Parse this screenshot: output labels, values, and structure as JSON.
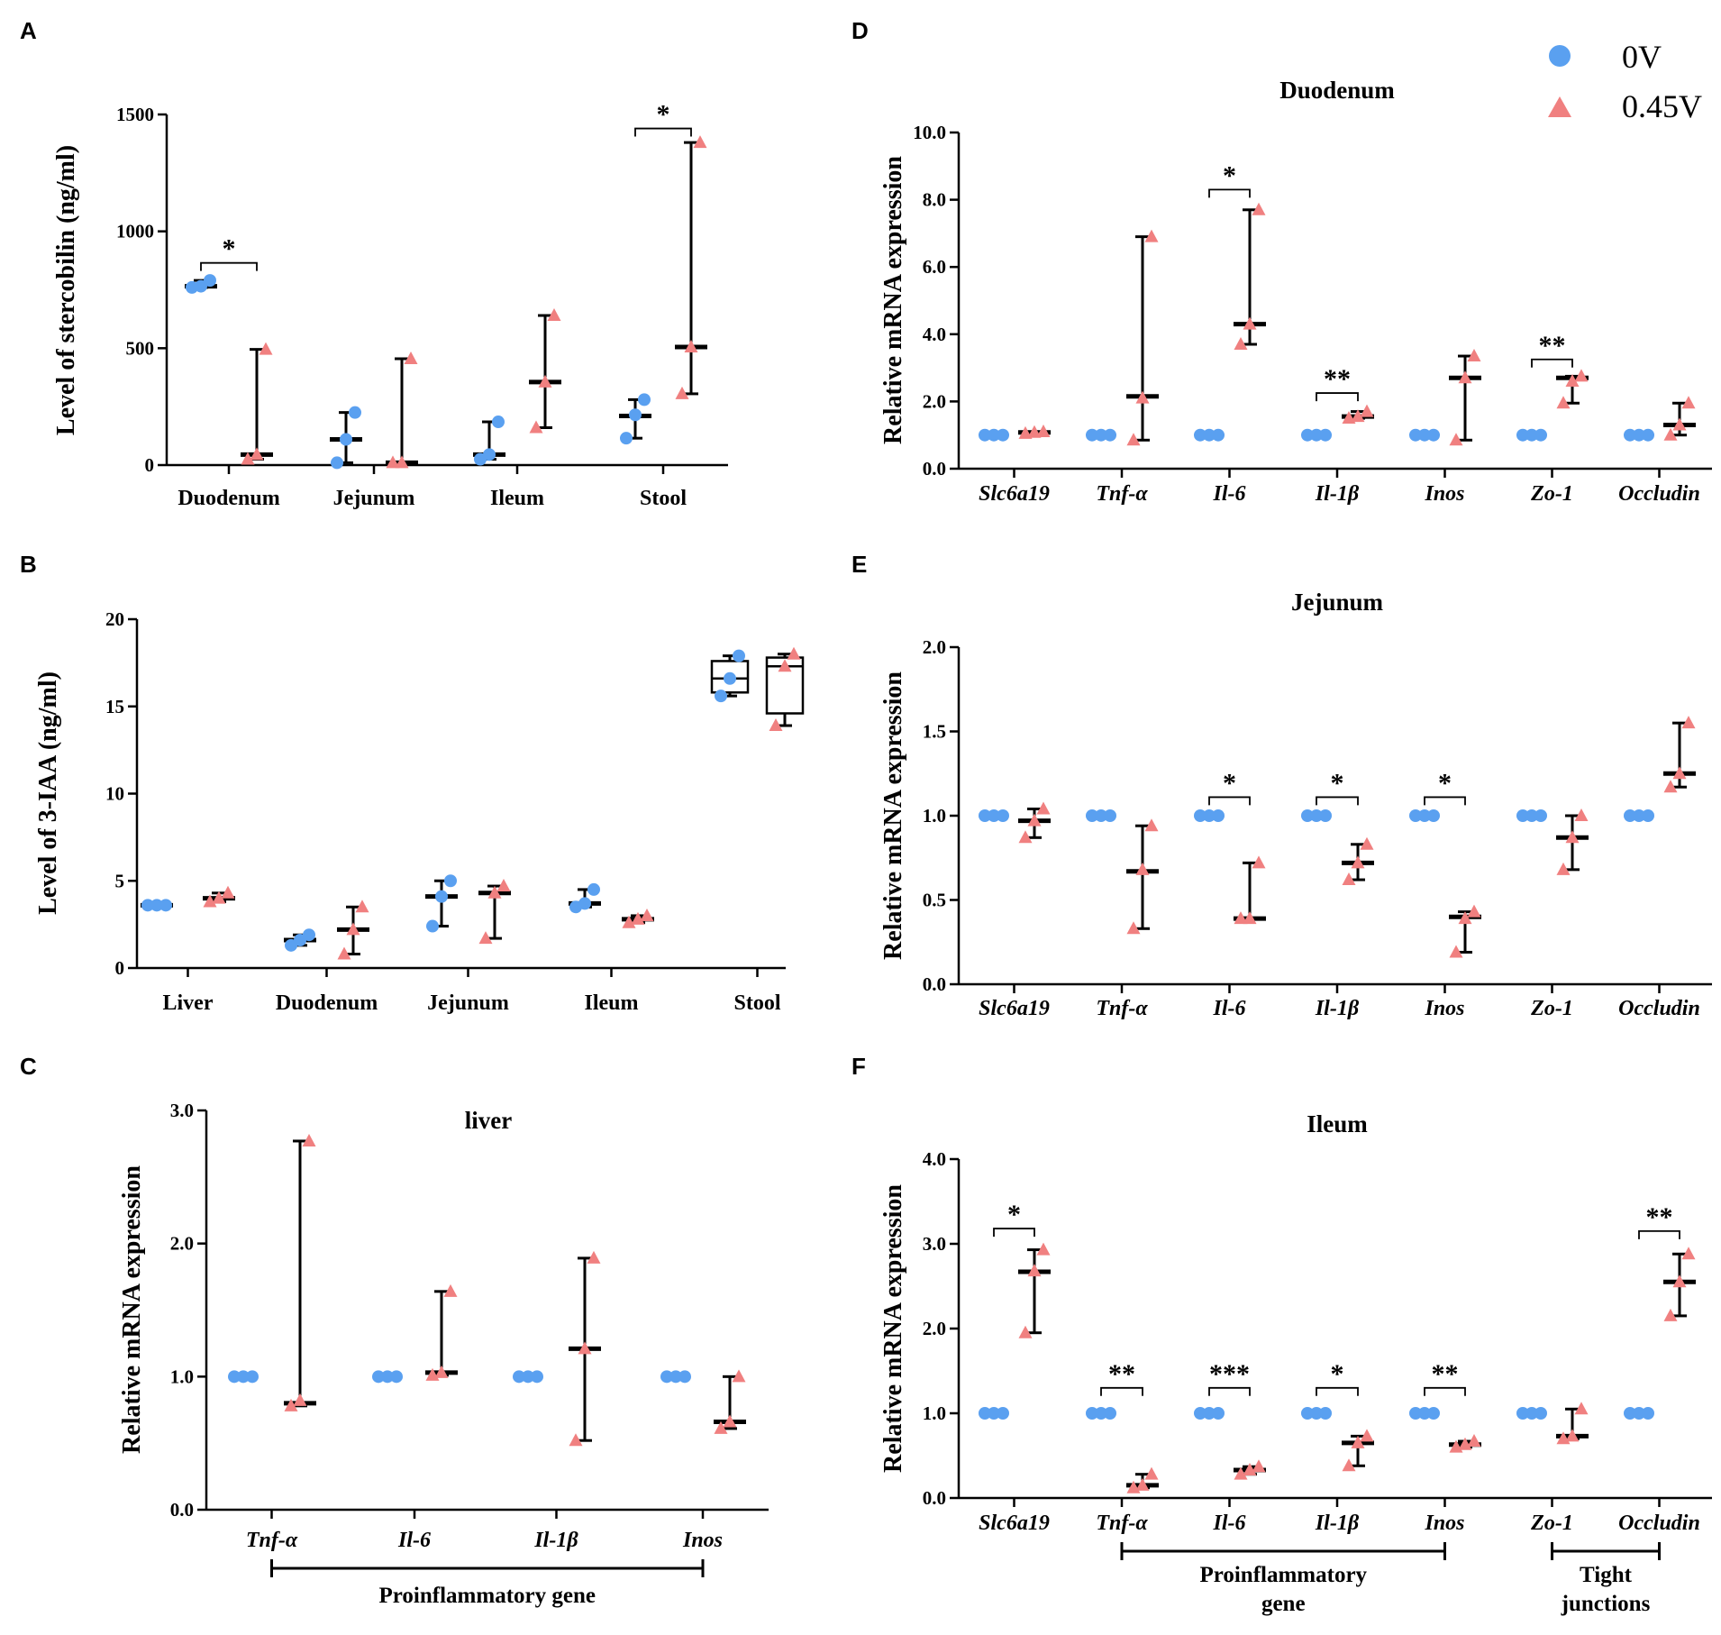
{
  "colors": {
    "control": "#5aa0f0",
    "treated": "#f08080",
    "axis": "#000000"
  },
  "legend": [
    {
      "label": "0V",
      "shape": "circle"
    },
    {
      "label": "0.45V",
      "shape": "triangle"
    }
  ],
  "chart_data": [
    {
      "panel": "A",
      "type": "scatter",
      "title": "",
      "ylabel": "Level of stercobilin (ng/ml)",
      "ylim": [
        0,
        1500
      ],
      "yticks": [
        0,
        500,
        1000,
        1500
      ],
      "ytick_decimals": 0,
      "categories": [
        "Duodenum",
        "Jejunum",
        "Ileum",
        "Stool"
      ],
      "italic_categories": false,
      "series": [
        {
          "name": "0V",
          "points": [
            [
              760,
              765,
              790
            ],
            [
              10,
              110,
              225
            ],
            [
              25,
              45,
              185
            ],
            [
              115,
              215,
              280
            ]
          ],
          "center": [
            765,
            110,
            45,
            210
          ],
          "range": [
            [
              760,
              790
            ],
            [
              10,
              225
            ],
            [
              25,
              185
            ],
            [
              115,
              280
            ]
          ]
        },
        {
          "name": "0.45V",
          "points": [
            [
              25,
              45,
              495
            ],
            [
              10,
              10,
              455
            ],
            [
              160,
              355,
              640
            ],
            [
              305,
              505,
              1380
            ]
          ],
          "center": [
            45,
            10,
            355,
            505
          ],
          "range": [
            [
              25,
              495
            ],
            [
              10,
              455
            ],
            [
              160,
              640
            ],
            [
              305,
              1380
            ]
          ]
        }
      ],
      "annotations": [
        {
          "category": 0,
          "label": "*",
          "y": 865
        },
        {
          "category": 3,
          "label": "*",
          "y": 1440
        }
      ],
      "group_labels": []
    },
    {
      "panel": "B",
      "type": "box",
      "title": "",
      "ylabel": "Level of 3-IAA (ng/ml)",
      "ylim": [
        0,
        20
      ],
      "yticks": [
        0,
        5,
        10,
        15,
        20
      ],
      "ytick_decimals": 0,
      "categories": [
        "Liver",
        "Duodenum",
        "Jejunum",
        "Ileum",
        "Stool"
      ],
      "italic_categories": false,
      "series": [
        {
          "name": "0V",
          "points": [
            [
              3.6,
              3.6,
              3.6
            ],
            [
              1.3,
              1.6,
              1.9
            ],
            [
              2.4,
              4.1,
              5.0
            ],
            [
              3.5,
              3.7,
              4.5
            ],
            [
              15.6,
              16.6,
              17.9
            ]
          ],
          "center": [
            3.6,
            1.6,
            4.1,
            3.7,
            16.6
          ],
          "range": [
            [
              3.6,
              3.6
            ],
            [
              1.3,
              1.9
            ],
            [
              2.4,
              5.0
            ],
            [
              3.5,
              4.5
            ],
            [
              15.6,
              17.9
            ]
          ],
          "box": [
            null,
            null,
            null,
            null,
            [
              15.8,
              17.6
            ]
          ]
        },
        {
          "name": "0.45V",
          "points": [
            [
              3.8,
              4.0,
              4.3
            ],
            [
              0.8,
              2.2,
              3.5
            ],
            [
              1.7,
              4.3,
              4.7
            ],
            [
              2.6,
              2.8,
              3.0
            ],
            [
              13.9,
              17.3,
              18.0
            ]
          ],
          "center": [
            4.0,
            2.2,
            4.3,
            2.8,
            17.3
          ],
          "range": [
            [
              3.8,
              4.3
            ],
            [
              0.8,
              3.5
            ],
            [
              1.7,
              4.7
            ],
            [
              2.6,
              3.0
            ],
            [
              13.9,
              18.0
            ]
          ],
          "box": [
            null,
            null,
            null,
            null,
            [
              14.6,
              17.8
            ]
          ]
        }
      ],
      "annotations": [],
      "group_labels": []
    },
    {
      "panel": "C",
      "type": "scatter",
      "title": "liver",
      "ylabel": "Relative mRNA expression",
      "ylim": [
        0,
        3
      ],
      "yticks": [
        0,
        1,
        2,
        3
      ],
      "ytick_decimals": 1,
      "categories": [
        "Tnf-α",
        "Il-6",
        "Il-1β",
        "Inos"
      ],
      "italic_categories": true,
      "series": [
        {
          "name": "0V",
          "points": [
            [
              1,
              1,
              1
            ],
            [
              1,
              1,
              1
            ],
            [
              1,
              1,
              1
            ],
            [
              1,
              1,
              1
            ]
          ],
          "center": [
            1,
            1,
            1,
            1
          ],
          "range": [
            [
              1,
              1
            ],
            [
              1,
              1
            ],
            [
              1,
              1
            ],
            [
              1,
              1
            ]
          ]
        },
        {
          "name": "0.45V",
          "points": [
            [
              0.78,
              0.82,
              2.77
            ],
            [
              1.01,
              1.03,
              1.64
            ],
            [
              0.52,
              1.21,
              1.89
            ],
            [
              0.61,
              0.66,
              1.0
            ]
          ],
          "center": [
            0.8,
            1.03,
            1.21,
            0.66
          ],
          "range": [
            [
              0.78,
              2.77
            ],
            [
              1.01,
              1.64
            ],
            [
              0.52,
              1.89
            ],
            [
              0.61,
              1.0
            ]
          ]
        }
      ],
      "annotations": [],
      "group_labels": [
        {
          "label": "Proinflammatory gene",
          "from": 0,
          "to": 3
        }
      ]
    },
    {
      "panel": "D",
      "type": "scatter",
      "title": "Duodenum",
      "ylabel": "Relative mRNA expression",
      "ylim": [
        0,
        10
      ],
      "yticks": [
        0,
        2,
        4,
        6,
        8,
        10
      ],
      "ytick_decimals": 1,
      "categories": [
        "Slc6a19",
        "Tnf-α",
        "Il-6",
        "Il-1β",
        "Inos",
        "Zo-1",
        "Occludin"
      ],
      "italic_categories": true,
      "series": [
        {
          "name": "0V",
          "points": [
            [
              1,
              1,
              1
            ],
            [
              1,
              1,
              1
            ],
            [
              1,
              1,
              1
            ],
            [
              1,
              1,
              1
            ],
            [
              1,
              1,
              1
            ],
            [
              1,
              1,
              1
            ],
            [
              1,
              1,
              1
            ]
          ],
          "center": [
            1,
            1,
            1,
            1,
            1,
            1,
            1
          ],
          "range": [
            [
              1,
              1
            ],
            [
              1,
              1
            ],
            [
              1,
              1
            ],
            [
              1,
              1
            ],
            [
              1,
              1
            ],
            [
              1,
              1
            ],
            [
              1,
              1
            ]
          ]
        },
        {
          "name": "0.45V",
          "points": [
            [
              1.05,
              1.08,
              1.1
            ],
            [
              0.85,
              2.1,
              6.9
            ],
            [
              3.7,
              4.3,
              7.7
            ],
            [
              1.5,
              1.55,
              1.7
            ],
            [
              0.85,
              2.7,
              3.35
            ],
            [
              1.95,
              2.6,
              2.75
            ],
            [
              1.0,
              1.3,
              1.95
            ]
          ],
          "center": [
            1.08,
            2.15,
            4.3,
            1.55,
            2.7,
            2.7,
            1.3
          ],
          "range": [
            [
              1.05,
              1.1
            ],
            [
              0.85,
              6.9
            ],
            [
              3.7,
              7.7
            ],
            [
              1.5,
              1.7
            ],
            [
              0.85,
              3.35
            ],
            [
              1.95,
              2.75
            ],
            [
              1.0,
              1.95
            ]
          ]
        }
      ],
      "annotations": [
        {
          "category": 2,
          "label": "*",
          "y": 8.3
        },
        {
          "category": 3,
          "label": "**",
          "y": 2.25
        },
        {
          "category": 5,
          "label": "**",
          "y": 3.25
        }
      ],
      "group_labels": []
    },
    {
      "panel": "E",
      "type": "scatter",
      "title": "Jejunum",
      "ylabel": "Relative mRNA expression",
      "ylim": [
        0,
        2
      ],
      "yticks": [
        0,
        0.5,
        1,
        1.5,
        2
      ],
      "ytick_decimals": 1,
      "categories": [
        "Slc6a19",
        "Tnf-α",
        "Il-6",
        "Il-1β",
        "Inos",
        "Zo-1",
        "Occludin"
      ],
      "italic_categories": true,
      "series": [
        {
          "name": "0V",
          "points": [
            [
              1,
              1,
              1
            ],
            [
              1,
              1,
              1
            ],
            [
              1,
              1,
              1
            ],
            [
              1,
              1,
              1
            ],
            [
              1,
              1,
              1
            ],
            [
              1,
              1,
              1
            ],
            [
              1,
              1,
              1
            ]
          ],
          "center": [
            1,
            1,
            1,
            1,
            1,
            1,
            1
          ],
          "range": [
            [
              1,
              1
            ],
            [
              1,
              1
            ],
            [
              1,
              1
            ],
            [
              1,
              1
            ],
            [
              1,
              1
            ],
            [
              1,
              1
            ],
            [
              1,
              1
            ]
          ]
        },
        {
          "name": "0.45V",
          "points": [
            [
              0.87,
              0.97,
              1.04
            ],
            [
              0.33,
              0.68,
              0.94
            ],
            [
              0.39,
              0.39,
              0.72
            ],
            [
              0.62,
              0.72,
              0.83
            ],
            [
              0.19,
              0.39,
              0.43
            ],
            [
              0.68,
              0.87,
              1.0
            ],
            [
              1.17,
              1.25,
              1.55
            ]
          ],
          "center": [
            0.97,
            0.67,
            0.39,
            0.72,
            0.4,
            0.87,
            1.25
          ],
          "range": [
            [
              0.87,
              1.04
            ],
            [
              0.33,
              0.94
            ],
            [
              0.39,
              0.72
            ],
            [
              0.62,
              0.83
            ],
            [
              0.19,
              0.43
            ],
            [
              0.68,
              1.0
            ],
            [
              1.17,
              1.55
            ]
          ]
        }
      ],
      "annotations": [
        {
          "category": 2,
          "label": "*",
          "y": 1.11
        },
        {
          "category": 3,
          "label": "*",
          "y": 1.11
        },
        {
          "category": 4,
          "label": "*",
          "y": 1.11
        }
      ],
      "group_labels": []
    },
    {
      "panel": "F",
      "type": "scatter",
      "title": "Ileum",
      "ylabel": "Relative mRNA expression",
      "ylim": [
        0,
        4
      ],
      "yticks": [
        0,
        1,
        2,
        3,
        4
      ],
      "ytick_decimals": 1,
      "categories": [
        "Slc6a19",
        "Tnf-α",
        "Il-6",
        "Il-1β",
        "Inos",
        "Zo-1",
        "Occludin"
      ],
      "italic_categories": true,
      "series": [
        {
          "name": "0V",
          "points": [
            [
              1,
              1,
              1
            ],
            [
              1,
              1,
              1
            ],
            [
              1,
              1,
              1
            ],
            [
              1,
              1,
              1
            ],
            [
              1,
              1,
              1
            ],
            [
              1,
              1,
              1
            ],
            [
              1,
              1,
              1
            ]
          ],
          "center": [
            1,
            1,
            1,
            1,
            1,
            1,
            1
          ],
          "range": [
            [
              1,
              1
            ],
            [
              1,
              1
            ],
            [
              1,
              1
            ],
            [
              1,
              1
            ],
            [
              1,
              1
            ],
            [
              1,
              1
            ],
            [
              1,
              1
            ]
          ]
        },
        {
          "name": "0.45V",
          "points": [
            [
              1.95,
              2.68,
              2.93
            ],
            [
              0.12,
              0.15,
              0.28
            ],
            [
              0.28,
              0.33,
              0.37
            ],
            [
              0.38,
              0.65,
              0.73
            ],
            [
              0.6,
              0.63,
              0.67
            ],
            [
              0.7,
              0.73,
              1.05
            ],
            [
              2.15,
              2.55,
              2.88
            ]
          ],
          "center": [
            2.67,
            0.15,
            0.33,
            0.65,
            0.63,
            0.73,
            2.55
          ],
          "range": [
            [
              1.95,
              2.93
            ],
            [
              0.12,
              0.28
            ],
            [
              0.28,
              0.37
            ],
            [
              0.38,
              0.73
            ],
            [
              0.6,
              0.67
            ],
            [
              0.7,
              1.05
            ],
            [
              2.15,
              2.88
            ]
          ]
        }
      ],
      "annotations": [
        {
          "category": 0,
          "label": "*",
          "y": 3.18
        },
        {
          "category": 1,
          "label": "**",
          "y": 1.3
        },
        {
          "category": 2,
          "label": "***",
          "y": 1.3
        },
        {
          "category": 3,
          "label": "*",
          "y": 1.3
        },
        {
          "category": 4,
          "label": "**",
          "y": 1.3
        },
        {
          "category": 6,
          "label": "**",
          "y": 3.15
        }
      ],
      "group_labels": [
        {
          "label": "Proinflammatory gene",
          "from": 1,
          "to": 4
        },
        {
          "label": "Tight junctions",
          "from": 5,
          "to": 6
        }
      ]
    }
  ]
}
